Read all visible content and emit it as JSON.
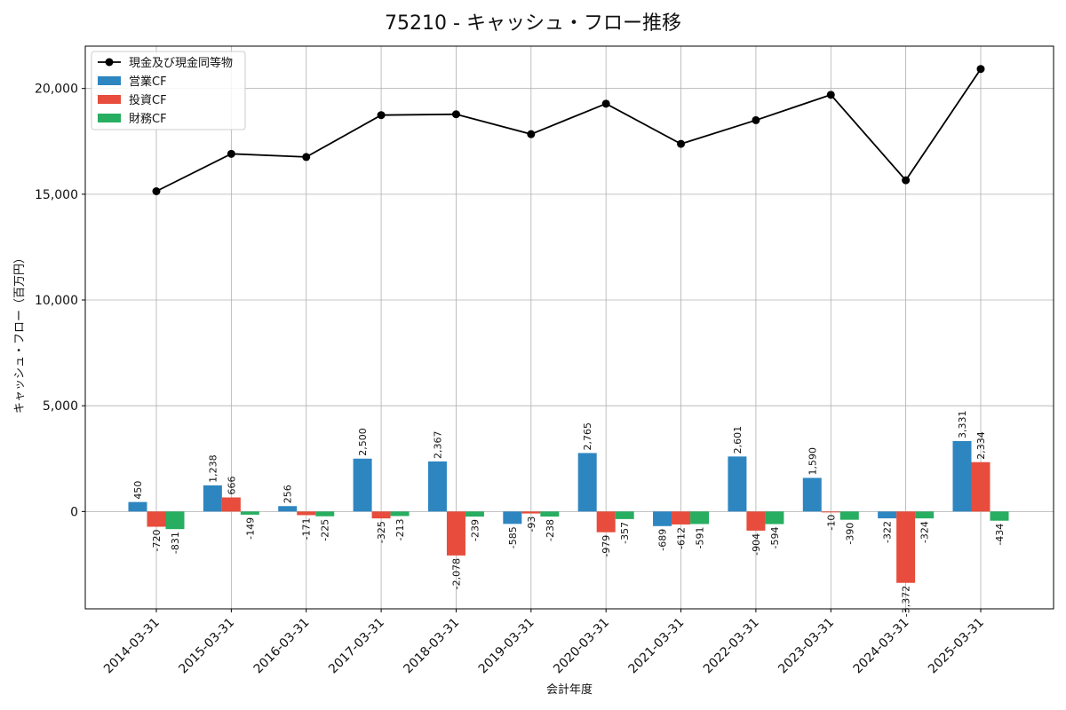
{
  "chart_data": {
    "type": "bar",
    "title": "75210 - キャッシュ・フロー推移",
    "xlabel": "会計年度",
    "ylabel": "キャッシュ・フロー（百万円）",
    "ylim": [
      -4600,
      22000
    ],
    "yticks": [
      0,
      5000,
      10000,
      15000,
      20000
    ],
    "ytick_labels": [
      "0",
      "5,000",
      "10,000",
      "15,000",
      "20,000"
    ],
    "grid": true,
    "legend_position": "top-left",
    "categories": [
      "2014-03-31",
      "2015-03-31",
      "2016-03-31",
      "2017-03-31",
      "2018-03-31",
      "2019-03-31",
      "2020-03-31",
      "2021-03-31",
      "2022-03-31",
      "2023-03-31",
      "2024-03-31",
      "2025-03-31"
    ],
    "line_series": {
      "name": "現金及び現金同等物",
      "color": "#000000",
      "values": [
        15140,
        16910,
        16760,
        18740,
        18780,
        17840,
        19280,
        17380,
        18500,
        19700,
        15660,
        20920
      ]
    },
    "series": [
      {
        "name": "営業CF",
        "color": "#2e86c1",
        "values": [
          450,
          1238,
          256,
          2500,
          2367,
          -585,
          2765,
          -689,
          2601,
          1590,
          -322,
          3331
        ],
        "labels": [
          "450",
          "1,238",
          "256",
          "2,500",
          "2,367",
          "-585",
          "2,765",
          "-689",
          "2,601",
          "1,590",
          "-322",
          "3,331"
        ]
      },
      {
        "name": "投資CF",
        "color": "#e74c3c",
        "values": [
          -720,
          666,
          -171,
          -325,
          -2078,
          -93,
          -979,
          -612,
          -904,
          -10,
          -3372,
          2334
        ],
        "labels": [
          "-720",
          "666",
          "-171",
          "-325",
          "-2,078",
          "-93",
          "-979",
          "-612",
          "-904",
          "-10",
          "-3,372",
          "2,334"
        ]
      },
      {
        "name": "財務CF",
        "color": "#27ae60",
        "values": [
          -831,
          -149,
          -225,
          -213,
          -239,
          -238,
          -357,
          -591,
          -594,
          -390,
          -324,
          -434
        ],
        "labels": [
          "-831",
          "-149",
          "-225",
          "-213",
          "-239",
          "-238",
          "-357",
          "-591",
          "-594",
          "-390",
          "-324",
          "-434"
        ]
      }
    ]
  }
}
